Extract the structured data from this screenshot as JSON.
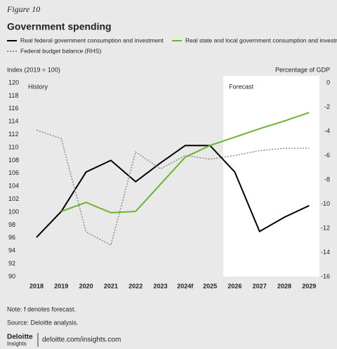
{
  "chart_data": {
    "type": "line",
    "figure_label": "Figure 10",
    "title": "Government spending",
    "y_label": "Index (2019 = 100)",
    "y2_label": "Percentage of GDP",
    "annotations": [
      "History",
      "Forecast"
    ],
    "categories": [
      "2018",
      "2019",
      "2020",
      "2021",
      "2022",
      "2023",
      "2024f",
      "2025",
      "2026",
      "2027",
      "2028",
      "2029"
    ],
    "series": [
      {
        "name": "Real federal government consumption and investment",
        "color": "#000000",
        "dash": "solid",
        "values": [
          96.1,
          100.1,
          106.2,
          108,
          104.7,
          107.6,
          110.3,
          110.3,
          106.2,
          97,
          99.2,
          101
        ]
      },
      {
        "name": "Real state and local government consumption and investment",
        "color": "#6cb22c",
        "dash": "solid",
        "values": [
          null,
          100.1,
          101.5,
          99.9,
          100.1,
          104.3,
          108.5,
          110.3,
          111.6,
          112.9,
          114.1,
          115.4
        ]
      },
      {
        "name": "Federal budget balance (RHS)",
        "color": "#8c8c8c",
        "dash": "dotted",
        "axis": "y2",
        "values": [
          -3.9,
          -4.6,
          -12.3,
          -13.4,
          -5.7,
          -7.1,
          -6.0,
          -6.3,
          -6.0,
          -5.6,
          -5.4,
          -5.4
        ]
      }
    ],
    "ylim": [
      90,
      120
    ],
    "yticks": [
      90,
      92,
      94,
      96,
      98,
      100,
      102,
      104,
      106,
      108,
      110,
      112,
      114,
      116,
      118,
      120
    ],
    "y2lim": [
      -16,
      0
    ],
    "y2ticks": [
      -16,
      -14,
      -12,
      -10,
      -8,
      -6,
      -4,
      -2,
      0
    ],
    "grid": false
  },
  "notes": [
    "Note: f denotes forecast.",
    "Source: Deloitte analysis."
  ],
  "footer": {
    "brand": "Deloitte",
    "brand_sub": "Insights",
    "url": "deloitte.com/insights.com"
  }
}
